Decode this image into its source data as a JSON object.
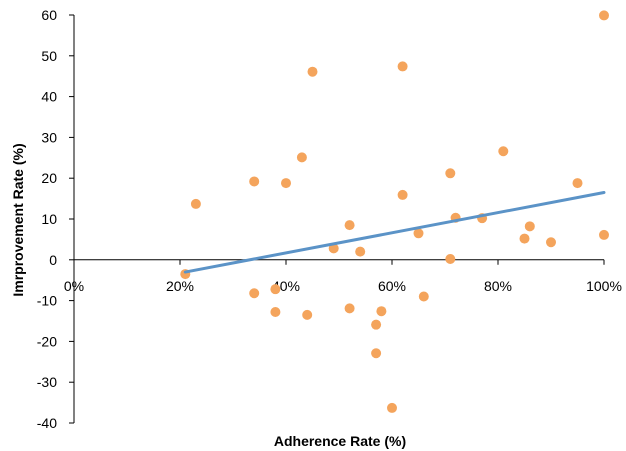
{
  "chart_data": {
    "type": "scatter",
    "xlabel": "Adherence Rate (%)",
    "ylabel": "Imrprovement Rate (%)",
    "xlim": [
      0,
      1
    ],
    "ylim": [
      -40,
      60
    ],
    "x_ticks": [
      {
        "value": 0,
        "label": "0%"
      },
      {
        "value": 0.2,
        "label": "20%"
      },
      {
        "value": 0.4,
        "label": "40%"
      },
      {
        "value": 0.6,
        "label": "60%"
      },
      {
        "value": 0.8,
        "label": "80%"
      },
      {
        "value": 1.0,
        "label": "100%"
      }
    ],
    "y_ticks": [
      {
        "value": 60,
        "label": "60"
      },
      {
        "value": 50,
        "label": "50"
      },
      {
        "value": 40,
        "label": "40"
      },
      {
        "value": 30,
        "label": "30"
      },
      {
        "value": 20,
        "label": "20"
      },
      {
        "value": 10,
        "label": "10"
      },
      {
        "value": 0,
        "label": "0"
      },
      {
        "value": -10,
        "label": "-10"
      },
      {
        "value": -20,
        "label": "-20"
      },
      {
        "value": -30,
        "label": "-30"
      },
      {
        "value": -40,
        "label": "-40"
      }
    ],
    "grid": false,
    "points": [
      {
        "x": 0.21,
        "y": -3.5
      },
      {
        "x": 0.23,
        "y": 13.7
      },
      {
        "x": 0.34,
        "y": 19.2
      },
      {
        "x": 0.34,
        "y": -8.2
      },
      {
        "x": 0.38,
        "y": -7.2
      },
      {
        "x": 0.38,
        "y": -12.8
      },
      {
        "x": 0.4,
        "y": 18.8
      },
      {
        "x": 0.43,
        "y": 25.1
      },
      {
        "x": 0.44,
        "y": -13.5
      },
      {
        "x": 0.45,
        "y": 46.1
      },
      {
        "x": 0.49,
        "y": 2.8
      },
      {
        "x": 0.52,
        "y": 8.5
      },
      {
        "x": 0.52,
        "y": -11.9
      },
      {
        "x": 0.54,
        "y": 2.0
      },
      {
        "x": 0.57,
        "y": -15.9
      },
      {
        "x": 0.57,
        "y": -22.9
      },
      {
        "x": 0.58,
        "y": -12.6
      },
      {
        "x": 0.6,
        "y": -36.3
      },
      {
        "x": 0.62,
        "y": 47.4
      },
      {
        "x": 0.62,
        "y": 15.9
      },
      {
        "x": 0.65,
        "y": 6.5
      },
      {
        "x": 0.66,
        "y": -9.0
      },
      {
        "x": 0.71,
        "y": 21.2
      },
      {
        "x": 0.71,
        "y": 0.2
      },
      {
        "x": 0.72,
        "y": 10.3
      },
      {
        "x": 0.77,
        "y": 10.2
      },
      {
        "x": 0.81,
        "y": 26.6
      },
      {
        "x": 0.85,
        "y": 5.2
      },
      {
        "x": 0.86,
        "y": 8.2
      },
      {
        "x": 0.9,
        "y": 4.3
      },
      {
        "x": 0.95,
        "y": 18.8
      },
      {
        "x": 1.0,
        "y": 59.9
      },
      {
        "x": 1.0,
        "y": 6.1
      }
    ],
    "trendline": {
      "x": [
        0.21,
        1.0
      ],
      "y": [
        -3.0,
        16.5
      ]
    },
    "colors": {
      "points": "#f4a45c",
      "trendline": "#5b93c7",
      "axis": "#000000"
    }
  }
}
